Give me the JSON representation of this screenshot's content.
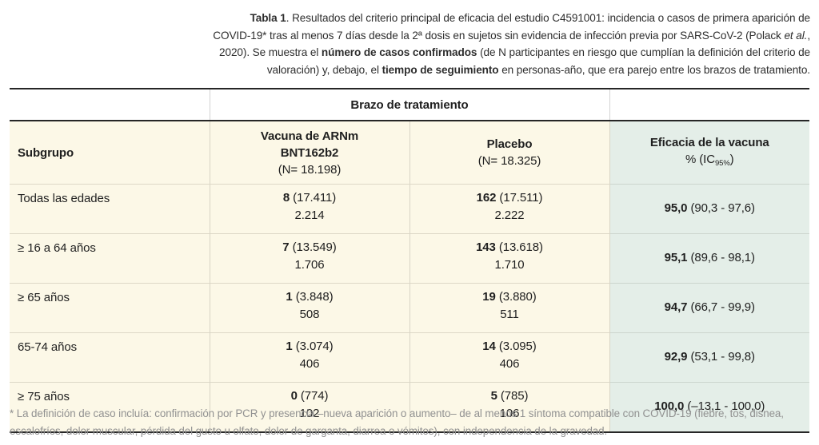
{
  "caption": {
    "segments": [
      {
        "text": "Tabla 1"
      },
      {
        "text": ". Resultados del criterio principal de eficacia del estudio C4591001: incidencia o casos de primera aparición de COVID-19* tras al menos 7 días desde la 2ª dosis en sujetos sin evidencia de infección previa por SARS-CoV-2 (Polack "
      },
      {
        "text": "et al."
      },
      {
        "text": ", 2020). Se muestra el "
      },
      {
        "text": "número de casos confirmados"
      },
      {
        "text": " (de N participantes en riesgo que cumplían la definición del criterio de valoración) y, debajo, el "
      },
      {
        "text": "tiempo de seguimiento"
      },
      {
        "text": " en personas-año, que era parejo entre los brazos de tratamiento."
      }
    ]
  },
  "table": {
    "group_header": "Brazo de tratamiento",
    "columns": {
      "subgroup": "Subgrupo",
      "vaccine_line1": "Vacuna de ARNm",
      "vaccine_line2": "BNT162b2",
      "vaccine_n": "(N= 18.198)",
      "placebo_line1": "Placebo",
      "placebo_n": "(N= 18.325)",
      "efficacy_line1": "Eficacia de la vacuna",
      "efficacy_pct_prefix": "% (IC",
      "efficacy_pct_sub": "95%",
      "efficacy_pct_suffix": ")"
    },
    "rows": [
      {
        "label": "Todas las edades",
        "vaccine_cases": "8",
        "vaccine_risk": " (17.411)",
        "vaccine_fu": "2.214",
        "placebo_cases": "162",
        "placebo_risk": " (17.511)",
        "placebo_fu": "2.222",
        "eff": "95,0",
        "ci": " (90,3 - 97,6)"
      },
      {
        "label": "≥ 16 a 64 años",
        "vaccine_cases": "7",
        "vaccine_risk": " (13.549)",
        "vaccine_fu": "1.706",
        "placebo_cases": "143",
        "placebo_risk": " (13.618)",
        "placebo_fu": "1.710",
        "eff": "95,1",
        "ci": " (89,6 - 98,1)"
      },
      {
        "label": "≥ 65 años",
        "vaccine_cases": "1",
        "vaccine_risk": " (3.848)",
        "vaccine_fu": "508",
        "placebo_cases": "19",
        "placebo_risk": " (3.880)",
        "placebo_fu": "511",
        "eff": "94,7",
        "ci": " (66,7 - 99,9)"
      },
      {
        "label": "65-74 años",
        "vaccine_cases": "1",
        "vaccine_risk": " (3.074)",
        "vaccine_fu": "406",
        "placebo_cases": "14",
        "placebo_risk": " (3.095)",
        "placebo_fu": "406",
        "eff": "92,9",
        "ci": " (53,1 - 99,8)"
      },
      {
        "label": "≥ 75 años",
        "vaccine_cases": "0",
        "vaccine_risk": " (774)",
        "vaccine_fu": "102",
        "placebo_cases": "5",
        "placebo_risk": " (785)",
        "placebo_fu": "106",
        "eff": "100,0",
        "ci": " (–13,1 - 100,0)"
      }
    ]
  },
  "footnote": "* La definición de caso incluía: confirmación por PCR y presencia –nueva aparición o aumento– de al menos 1 síntoma compatible con COVID-19 (fiebre, tos, disnea, escalofríos, dolor muscular, pérdida del gusto u olfato, dolor de garganta, diarrea o vómitos), con independencia de la gravedad.",
  "colors": {
    "cream_cell": "#fcf8e7",
    "mint_cell": "#e4eee8",
    "heavy_rule": "#262626",
    "light_grid": "#d8d4c5",
    "footnote_gray": "#919191"
  }
}
